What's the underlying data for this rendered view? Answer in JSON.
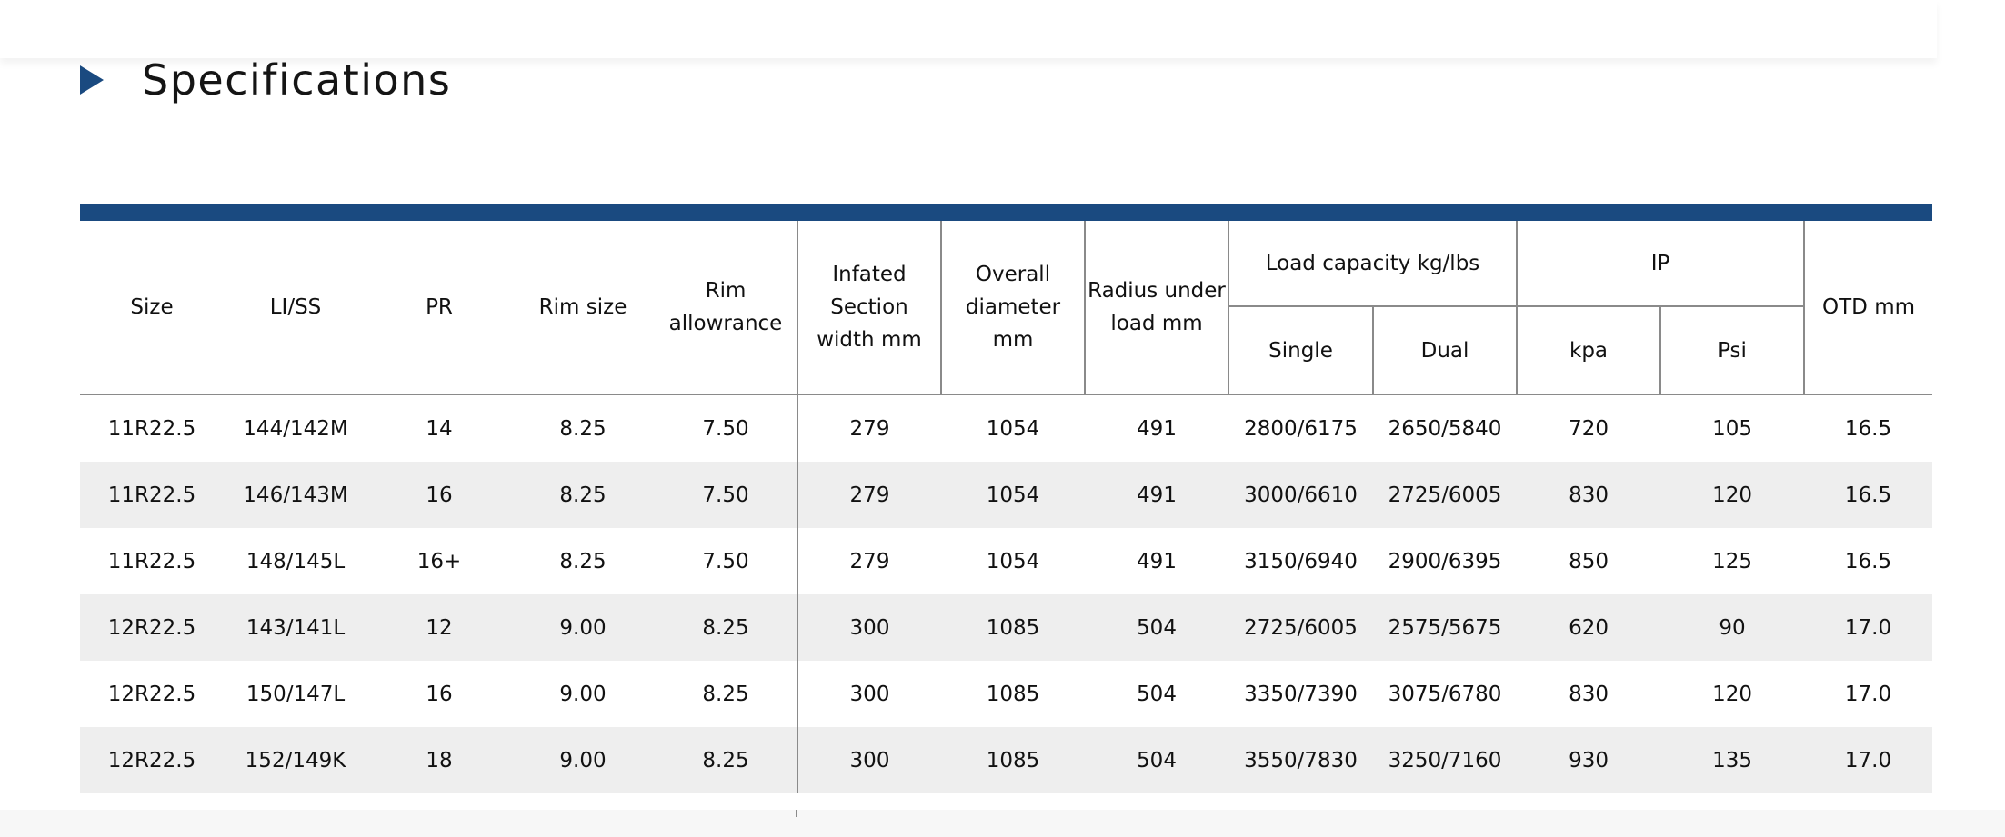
{
  "section": {
    "title": "Specifications",
    "icon": "triangle-right-icon",
    "accent_color": "#1a4a80"
  },
  "table": {
    "headers": {
      "size": "Size",
      "li_ss": "LI/SS",
      "pr": "PR",
      "rim_size": "Rim size",
      "rim_allowance": "Rim allowrance",
      "section_width": "Infated Section width mm",
      "overall_diameter": "Overall diameter mm",
      "radius_under_load": "Radius under load mm",
      "load_capacity": "Load capacity kg/lbs",
      "single": "Single",
      "dual": "Dual",
      "ip": "IP",
      "kpa": "kpa",
      "psi": "Psi",
      "otd": "OTD mm"
    },
    "rows": [
      [
        "11R22.5",
        "144/142M",
        "14",
        "8.25",
        "7.50",
        "279",
        "1054",
        "491",
        "2800/6175",
        "2650/5840",
        "720",
        "105",
        "16.5"
      ],
      [
        "11R22.5",
        "146/143M",
        "16",
        "8.25",
        "7.50",
        "279",
        "1054",
        "491",
        "3000/6610",
        "2725/6005",
        "830",
        "120",
        "16.5"
      ],
      [
        "11R22.5",
        "148/145L",
        "16+",
        "8.25",
        "7.50",
        "279",
        "1054",
        "491",
        "3150/6940",
        "2900/6395",
        "850",
        "125",
        "16.5"
      ],
      [
        "12R22.5",
        "143/141L",
        "12",
        "9.00",
        "8.25",
        "300",
        "1085",
        "504",
        "2725/6005",
        "2575/5675",
        "620",
        "90",
        "17.0"
      ],
      [
        "12R22.5",
        "150/147L",
        "16",
        "9.00",
        "8.25",
        "300",
        "1085",
        "504",
        "3350/7390",
        "3075/6780",
        "830",
        "120",
        "17.0"
      ],
      [
        "12R22.5",
        "152/149K",
        "18",
        "9.00",
        "8.25",
        "300",
        "1085",
        "504",
        "3550/7830",
        "3250/7160",
        "930",
        "135",
        "17.0"
      ]
    ]
  }
}
